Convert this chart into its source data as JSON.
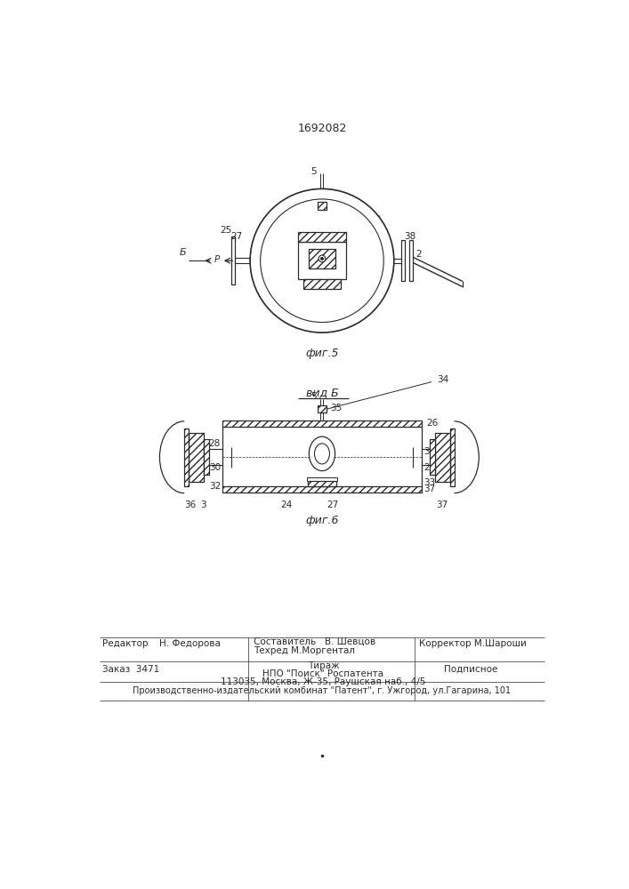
{
  "title": "1692082",
  "fig5_label": "фиг.5",
  "fig6_label": "фиг.6",
  "vid_b_label": "вид Б",
  "footer": {
    "editor_label": "Редактор",
    "editor_name": "Н. Федорова",
    "composer_label": "Составитель",
    "composer_name": "В. Шевцов",
    "techred_label": "Техред М.Моргентал",
    "corrector_label": "Корректор",
    "corrector_name": "М.Шароши",
    "order_label": "Заказ",
    "order_num": "3471",
    "tirazh_label": "Тираж",
    "podpisnoe_label": "Подписное",
    "npo_line": "НПО \"Поиск\" Роспатента",
    "address_line": "113035, Москва, Ж-35, Раушская наб., 4/5",
    "factory_line": "Производственно-издательский комбинат \"Патент\", г. Ужгород, ул.Гагарина, 101"
  },
  "bg_color": "#ffffff",
  "line_color": "#2a2a2a"
}
